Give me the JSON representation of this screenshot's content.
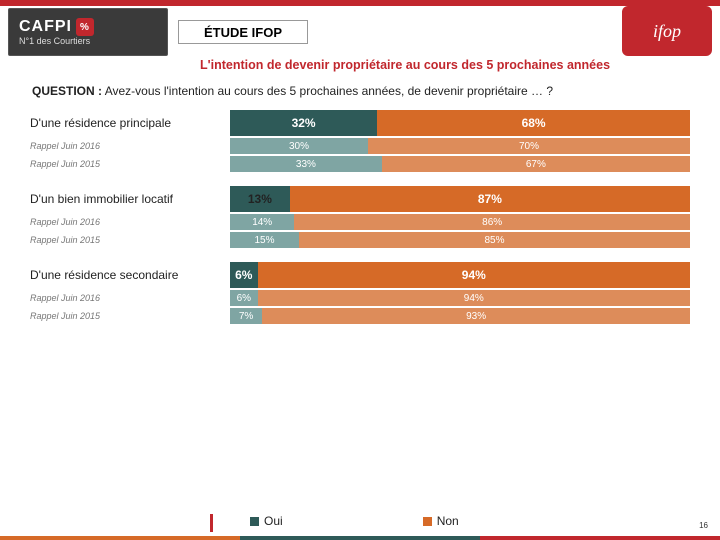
{
  "header": {
    "brand_line1": "CAFPI",
    "brand_line2": "N°1 des Courtiers",
    "pct": "%",
    "study_tag": "ÉTUDE IFOP",
    "ifop": "ifop",
    "subtitle": "L'intention de devenir propriétaire au cours des 5 prochaines années"
  },
  "question": {
    "label": "QUESTION :",
    "text": "Avez-vous l'intention au cours des 5 prochaines années, de devenir propriétaire … ?"
  },
  "chart": {
    "type": "stacked-bar-horizontal",
    "colors": {
      "oui_main": "#2e5a58",
      "non_main": "#d66a27",
      "oui_small": "#7fa5a3",
      "non_small": "#dd8c5a"
    },
    "groups": [
      {
        "main": {
          "label": "D'une résidence principale",
          "oui": 32,
          "non": 68
        },
        "recalls": [
          {
            "label": "Rappel Juin 2016",
            "oui": 30,
            "non": 70
          },
          {
            "label": "Rappel Juin 2015",
            "oui": 33,
            "non": 67
          }
        ]
      },
      {
        "main": {
          "label": "D'un bien immobilier locatif",
          "oui": 13,
          "non": 87,
          "oui_dark_text": true
        },
        "recalls": [
          {
            "label": "Rappel Juin 2016",
            "oui": 14,
            "non": 86
          },
          {
            "label": "Rappel Juin 2015",
            "oui": 15,
            "non": 85
          }
        ]
      },
      {
        "main": {
          "label": "D'une résidence secondaire",
          "oui": 6,
          "non": 94
        },
        "recalls": [
          {
            "label": "Rappel Juin 2016",
            "oui": 6,
            "non": 94
          },
          {
            "label": "Rappel Juin 2015",
            "oui": 7,
            "non": 93
          }
        ]
      }
    ]
  },
  "legend": {
    "oui": "Oui",
    "non": "Non"
  },
  "footer": {
    "page": "16",
    "bar_colors": [
      "#d66a27",
      "#2e5a58",
      "#c1272d"
    ]
  }
}
